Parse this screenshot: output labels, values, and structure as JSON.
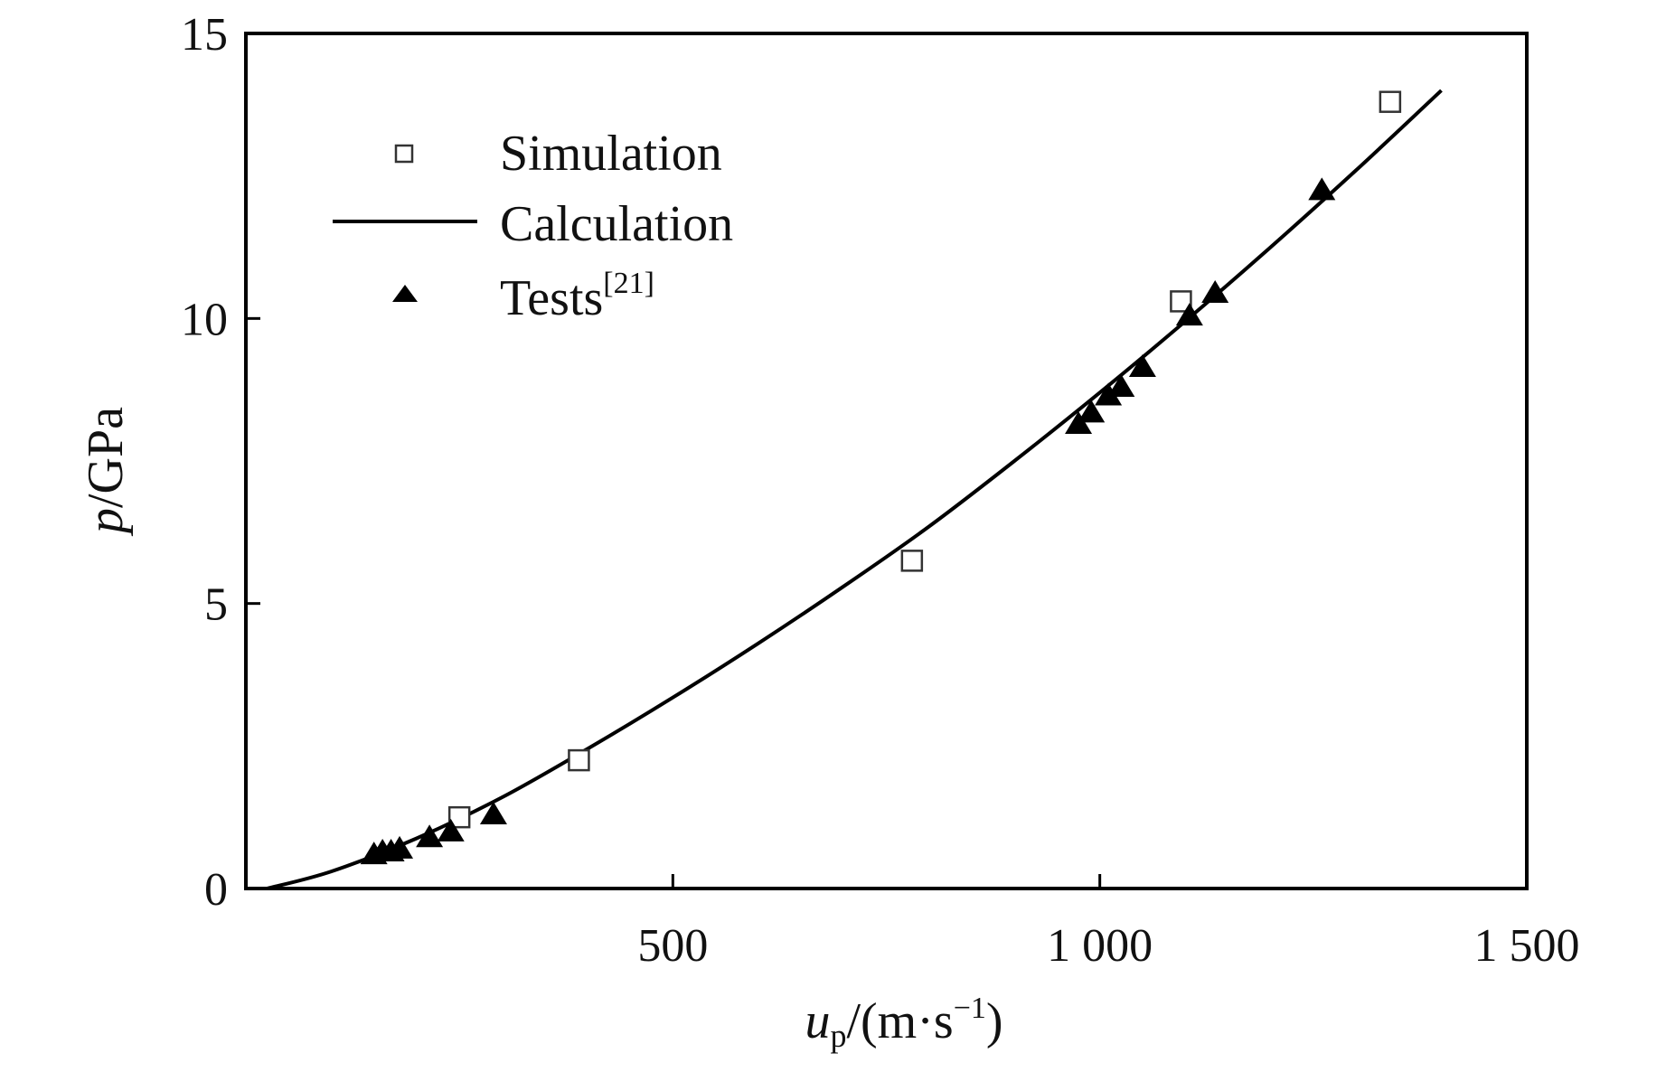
{
  "chart_data": {
    "type": "scatter",
    "xlabel": {
      "main": "u",
      "sub": "p",
      "rest": "/(m·s",
      "sup": "−1",
      "close": ")"
    },
    "ylabel": {
      "italic": "p",
      "rest": "/GPa"
    },
    "xlim": [
      0,
      1500
    ],
    "ylim": [
      0,
      15
    ],
    "xticks": [
      500,
      1000,
      1500
    ],
    "xtick_labels": [
      "500",
      "1 000",
      "1 500"
    ],
    "yticks": [
      0,
      5,
      10,
      15
    ],
    "ytick_labels": [
      "0",
      "5",
      "10",
      "15"
    ],
    "grid": false,
    "legend_position": "top-left",
    "series": [
      {
        "name": "Simulation",
        "marker": "open-square",
        "color": "#333333",
        "x": [
          250,
          390,
          780,
          1095,
          1340
        ],
        "y": [
          1.25,
          2.25,
          5.75,
          10.3,
          13.8
        ]
      },
      {
        "name": "Calculation",
        "marker": "line",
        "color": "#000000",
        "x": [
          25,
          100,
          200,
          300,
          400,
          500,
          600,
          700,
          800,
          900,
          1000,
          1100,
          1200,
          1300,
          1400
        ],
        "y": [
          0.0,
          0.3,
          0.88,
          1.6,
          2.45,
          3.35,
          4.3,
          5.3,
          6.35,
          7.5,
          8.7,
          9.95,
          11.25,
          12.6,
          14.0
        ]
      },
      {
        "name": "Tests",
        "name_sup": "[21]",
        "marker": "filled-triangle",
        "color": "#000000",
        "x": [
          150,
          160,
          170,
          180,
          215,
          240,
          290,
          975,
          990,
          1010,
          1025,
          1050,
          1105,
          1135,
          1260
        ],
        "y": [
          0.6,
          0.65,
          0.65,
          0.7,
          0.9,
          1.0,
          1.3,
          8.15,
          8.35,
          8.65,
          8.8,
          9.15,
          10.05,
          10.45,
          12.25
        ]
      }
    ]
  }
}
